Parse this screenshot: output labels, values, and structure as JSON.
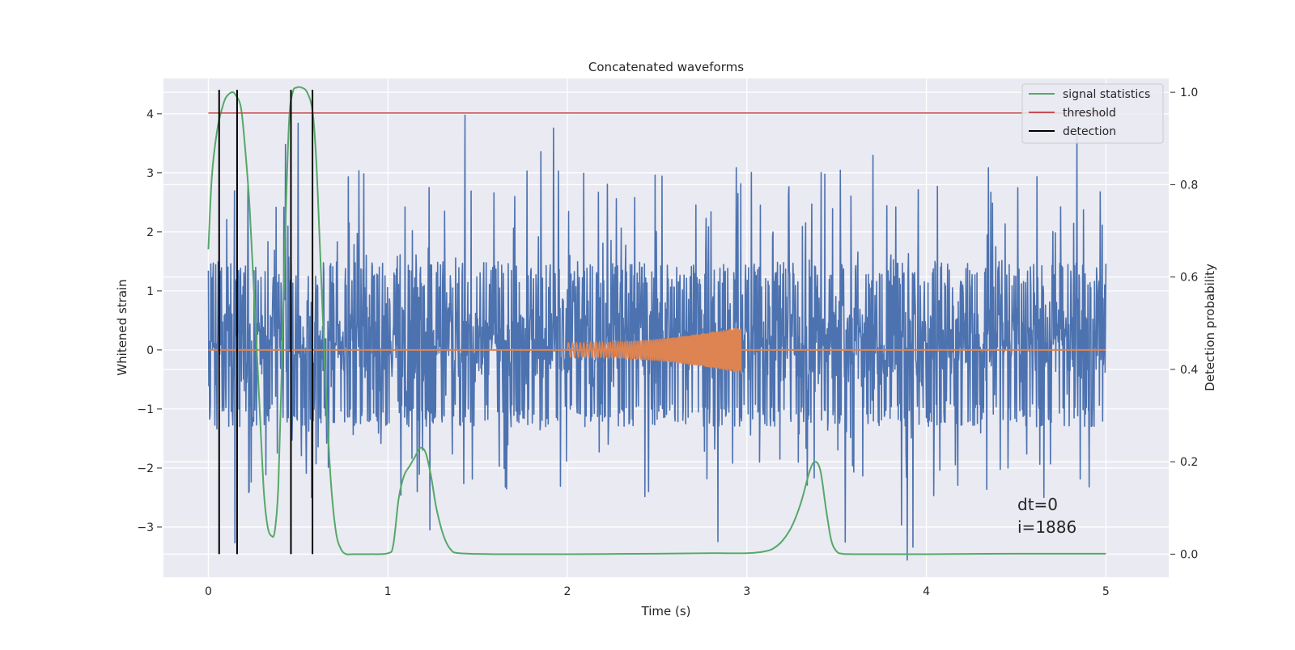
{
  "chart_data": {
    "type": "line",
    "title": "Concatenated waveforms",
    "xlabel": "Time (s)",
    "ylabel": "Whitened strain",
    "y2label": "Detection probability",
    "xlim": [
      -0.25,
      5.35
    ],
    "ylim": [
      -3.85,
      4.6
    ],
    "y2lim": [
      -0.05,
      1.03
    ],
    "x_ticks": [
      0,
      1,
      2,
      3,
      4,
      5
    ],
    "y_ticks": [
      -3,
      -2,
      -1,
      0,
      1,
      2,
      3,
      4
    ],
    "y2_ticks": [
      0.0,
      0.2,
      0.4,
      0.6,
      0.8,
      1.0
    ],
    "x_tick_labels": [
      "0",
      "1",
      "2",
      "3",
      "4",
      "5"
    ],
    "y_tick_labels": [
      "−3",
      "−2",
      "−1",
      "0",
      "1",
      "2",
      "3",
      "4"
    ],
    "y2_tick_labels": [
      "0.0",
      "0.2",
      "0.4",
      "0.6",
      "0.8",
      "1.0"
    ],
    "grid": true,
    "legend_position": "top-right",
    "series": [
      {
        "name": "",
        "axis": "left",
        "color": "#4c72b0",
        "kind": "noise",
        "x_range": [
          0,
          5
        ],
        "typical_range": [
          -1.3,
          1.5
        ],
        "extremes": [
          -3.6,
          4.1
        ]
      },
      {
        "name": "",
        "axis": "left",
        "color": "#dd8452",
        "kind": "chirp",
        "x_range": [
          2.0,
          2.97
        ],
        "amplitude_start": 0.12,
        "amplitude_end": 0.4,
        "min_value": -0.4
      },
      {
        "name": "signal statistics",
        "axis": "right",
        "color": "#55a868",
        "x": [
          0,
          0.02,
          0.05,
          0.08,
          0.1,
          0.13,
          0.15,
          0.18,
          0.2,
          0.23,
          0.26,
          0.29,
          0.31,
          0.33,
          0.35,
          0.37,
          0.39,
          0.41,
          0.43,
          0.45,
          0.47,
          0.49,
          0.52,
          0.55,
          0.58,
          0.6,
          0.62,
          0.65,
          0.68,
          0.71,
          0.74,
          0.77,
          0.8,
          0.9,
          1.0,
          1.03,
          1.06,
          1.09,
          1.12,
          1.15,
          1.18,
          1.21,
          1.24,
          1.27,
          1.31,
          1.35,
          1.4,
          1.6,
          2.0,
          2.5,
          2.8,
          3.0,
          3.1,
          3.15,
          3.2,
          3.25,
          3.3,
          3.35,
          3.38,
          3.41,
          3.44,
          3.47,
          3.5,
          3.53,
          3.6,
          4.0,
          4.5,
          5.0
        ],
        "values": [
          0.66,
          0.82,
          0.92,
          0.97,
          0.99,
          1.0,
          0.995,
          0.97,
          0.9,
          0.75,
          0.52,
          0.28,
          0.13,
          0.06,
          0.04,
          0.05,
          0.15,
          0.42,
          0.72,
          0.94,
          1.0,
          1.01,
          1.01,
          1.0,
          0.96,
          0.86,
          0.68,
          0.4,
          0.17,
          0.05,
          0.01,
          0.0,
          0.0,
          0.0,
          0.002,
          0.02,
          0.12,
          0.17,
          0.19,
          0.21,
          0.23,
          0.22,
          0.17,
          0.1,
          0.04,
          0.01,
          0.002,
          0.0,
          0.0,
          0.001,
          0.002,
          0.002,
          0.006,
          0.013,
          0.03,
          0.06,
          0.11,
          0.18,
          0.2,
          0.18,
          0.1,
          0.03,
          0.006,
          0.001,
          0.0,
          0.0,
          0.001,
          0.001
        ]
      },
      {
        "name": "threshold",
        "axis": "right",
        "color": "#c44e52",
        "x": [
          0,
          5
        ],
        "values": [
          0.955,
          0.955
        ]
      },
      {
        "name": "detection",
        "color": "#000000",
        "kind": "vertical_lines",
        "x": [
          0.06,
          0.16,
          0.46,
          0.58
        ]
      }
    ],
    "annotations": [
      "dt=0",
      "i=1886"
    ]
  }
}
